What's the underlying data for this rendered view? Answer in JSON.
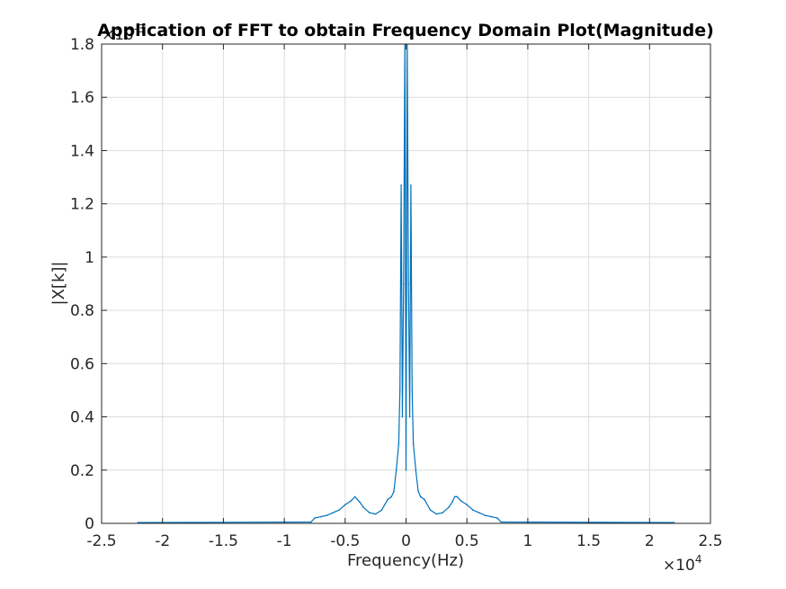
{
  "chart_data": {
    "type": "line",
    "title": "Application of FFT to obtain Frequency Domain Plot(Magnitude)",
    "xlabel": "Frequency(Hz)",
    "ylabel": "|X[k]|",
    "x_multiplier": {
      "base": "×10",
      "exponent": "4"
    },
    "y_multiplier": {
      "base": "×10",
      "exponent": "-3"
    },
    "xlim": [
      -2.5,
      2.5
    ],
    "ylim": [
      0,
      1.8
    ],
    "x_ticks": [
      -2.5,
      -2,
      -1.5,
      -1,
      -0.5,
      0,
      0.5,
      1,
      1.5,
      2,
      2.5
    ],
    "x_tick_labels": [
      "-2.5",
      "-2",
      "-1.5",
      "-1",
      "-0.5",
      "0",
      "0.5",
      "1",
      "1.5",
      "2",
      "2.5"
    ],
    "y_ticks": [
      0,
      0.2,
      0.4,
      0.6,
      0.8,
      1,
      1.2,
      1.4,
      1.6,
      1.8
    ],
    "y_tick_labels": [
      "0",
      "0.2",
      "0.4",
      "0.6",
      "0.8",
      "1",
      "1.2",
      "1.4",
      "1.6",
      "1.8"
    ],
    "grid": true,
    "line_color": "#0072BD",
    "series": [
      {
        "x": [
          -2.2,
          -0.78,
          -0.75,
          -0.7,
          -0.65,
          -0.6,
          -0.55,
          -0.5,
          -0.45,
          -0.42,
          -0.4,
          -0.38,
          -0.35,
          -0.3,
          -0.25,
          -0.2,
          -0.15,
          -0.12,
          -0.1,
          -0.08,
          -0.06,
          -0.05,
          -0.04,
          -0.03,
          -0.02,
          -0.01,
          0,
          0.01,
          0.02,
          0.03,
          0.04,
          0.05,
          0.06,
          0.08,
          0.1,
          0.12,
          0.15,
          0.2,
          0.25,
          0.3,
          0.35,
          0.38,
          0.4,
          0.42,
          0.45,
          0.5,
          0.55,
          0.6,
          0.65,
          0.7,
          0.75,
          0.78,
          2.2
        ],
        "y": [
          0.003,
          0.005,
          0.02,
          0.025,
          0.03,
          0.04,
          0.05,
          0.07,
          0.085,
          0.1,
          0.09,
          0.08,
          0.06,
          0.04,
          0.035,
          0.05,
          0.09,
          0.1,
          0.12,
          0.2,
          0.3,
          0.5,
          1.27,
          0.4,
          0.9,
          1.8,
          0.2,
          1.8,
          0.9,
          0.4,
          1.27,
          0.5,
          0.3,
          0.2,
          0.12,
          0.1,
          0.09,
          0.05,
          0.035,
          0.04,
          0.06,
          0.08,
          0.1,
          0.1,
          0.085,
          0.07,
          0.05,
          0.04,
          0.03,
          0.025,
          0.02,
          0.005,
          0.003
        ]
      }
    ]
  }
}
